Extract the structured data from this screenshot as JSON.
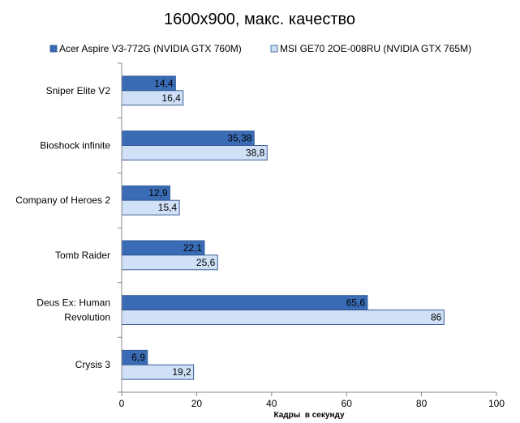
{
  "chart_data": {
    "type": "bar",
    "orientation": "horizontal",
    "title": "1600x900, макс. качество",
    "xlabel": "Кадры  в секунду",
    "ylabel": "",
    "xlim": [
      0,
      100
    ],
    "xticks": [
      "0",
      "20",
      "40",
      "60",
      "80",
      "100"
    ],
    "grid": false,
    "legend_position": "top",
    "categories": [
      [
        "Sniper Elite V2"
      ],
      [
        "Bioshock infinite"
      ],
      [
        "Company of Heroes 2"
      ],
      [
        "Tomb Raider"
      ],
      [
        "Deus Ex: Human",
        "Revolution"
      ],
      [
        "Crysis 3"
      ]
    ],
    "series": [
      {
        "name": "Acer Aspire V3-772G (NVIDIA GTX 760M)",
        "color": "#3a6cb5",
        "values": [
          14.4,
          35.38,
          12.9,
          22.1,
          65.6,
          6.9
        ],
        "labels": [
          "14,4",
          "35,38",
          "12,9",
          "22,1",
          "65,6",
          "6,9"
        ]
      },
      {
        "name": "MSI GE70 2OE-008RU (NVIDIA GTX 765M)",
        "color": "#cfe0f7",
        "values": [
          16.4,
          38.8,
          15.4,
          25.6,
          86,
          19.2
        ],
        "labels": [
          "16,4",
          "38,8",
          "15,4",
          "25,6",
          "86",
          "19,2"
        ]
      }
    ]
  }
}
